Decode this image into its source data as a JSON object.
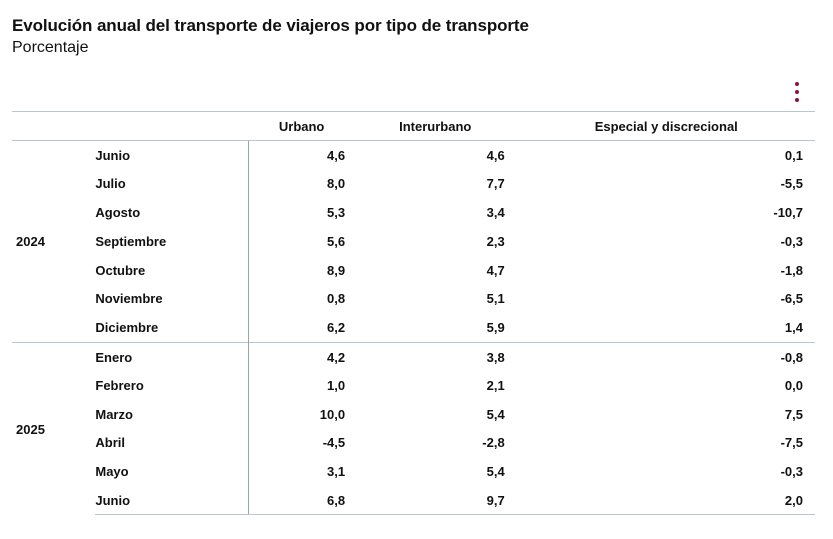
{
  "title": "Evolución anual del transporte de viajeros por tipo de transporte",
  "subtitle": "Porcentaje",
  "menu_icon": "vertical-ellipsis-icon",
  "accent_color": "#8a1538",
  "chart_data": {
    "type": "table",
    "title": "Evolución anual del transporte de viajeros por tipo de transporte",
    "subtitle": "Porcentaje",
    "columns": [
      "Urbano",
      "Interurbano",
      "Especial y discrecional"
    ],
    "groups": [
      {
        "year": "2024",
        "rows": [
          {
            "month": "Junio",
            "values": [
              "4,6",
              "4,6",
              "0,1"
            ]
          },
          {
            "month": "Julio",
            "values": [
              "8,0",
              "7,7",
              "-5,5"
            ]
          },
          {
            "month": "Agosto",
            "values": [
              "5,3",
              "3,4",
              "-10,7"
            ]
          },
          {
            "month": "Septiembre",
            "values": [
              "5,6",
              "2,3",
              "-0,3"
            ]
          },
          {
            "month": "Octubre",
            "values": [
              "8,9",
              "4,7",
              "-1,8"
            ]
          },
          {
            "month": "Noviembre",
            "values": [
              "0,8",
              "5,1",
              "-6,5"
            ]
          },
          {
            "month": "Diciembre",
            "values": [
              "6,2",
              "5,9",
              "1,4"
            ]
          }
        ]
      },
      {
        "year": "2025",
        "rows": [
          {
            "month": "Enero",
            "values": [
              "4,2",
              "3,8",
              "-0,8"
            ]
          },
          {
            "month": "Febrero",
            "values": [
              "1,0",
              "2,1",
              "0,0"
            ]
          },
          {
            "month": "Marzo",
            "values": [
              "10,0",
              "5,4",
              "7,5"
            ]
          },
          {
            "month": "Abril",
            "values": [
              "-4,5",
              "-2,8",
              "-7,5"
            ]
          },
          {
            "month": "Mayo",
            "values": [
              "3,1",
              "5,4",
              "-0,3"
            ]
          },
          {
            "month": "Junio",
            "values": [
              "6,8",
              "9,7",
              "2,0"
            ]
          }
        ]
      }
    ]
  }
}
